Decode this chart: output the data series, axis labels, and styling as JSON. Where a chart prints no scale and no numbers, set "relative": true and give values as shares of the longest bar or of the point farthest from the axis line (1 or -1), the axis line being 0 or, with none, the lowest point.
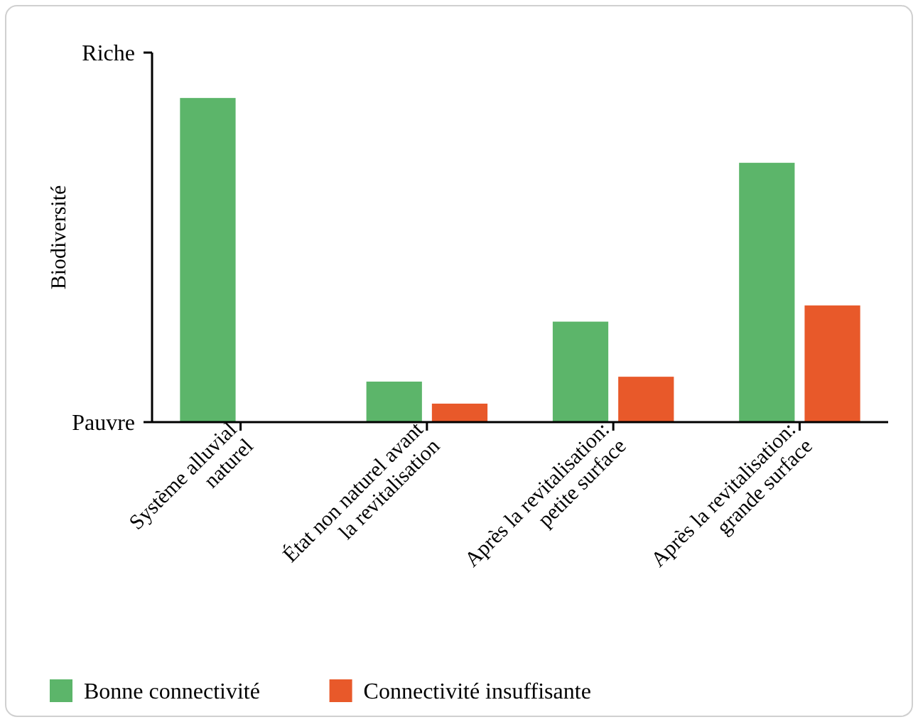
{
  "chart_data": {
    "type": "bar",
    "ylabel": "Biodiversité",
    "categories": [
      "Système alluvial\nnaturel",
      "État non naturel avant\nla revitalisation",
      "Après la revitalisation:\npetite surface",
      "Après la revitalisation:\ngrande surface"
    ],
    "series": [
      {
        "name": "Bonne connectivité",
        "color": "#5cb56a",
        "values": [
          1,
          0.125,
          0.31,
          0.8
        ]
      },
      {
        "name": "Connectivité insuffisante",
        "color": "#e8592a",
        "values": [
          null,
          0.057,
          0.14,
          0.36
        ]
      }
    ],
    "relative": true,
    "annotations": [
      "Riche",
      "Pauvre"
    ],
    "legend": "bottom"
  }
}
